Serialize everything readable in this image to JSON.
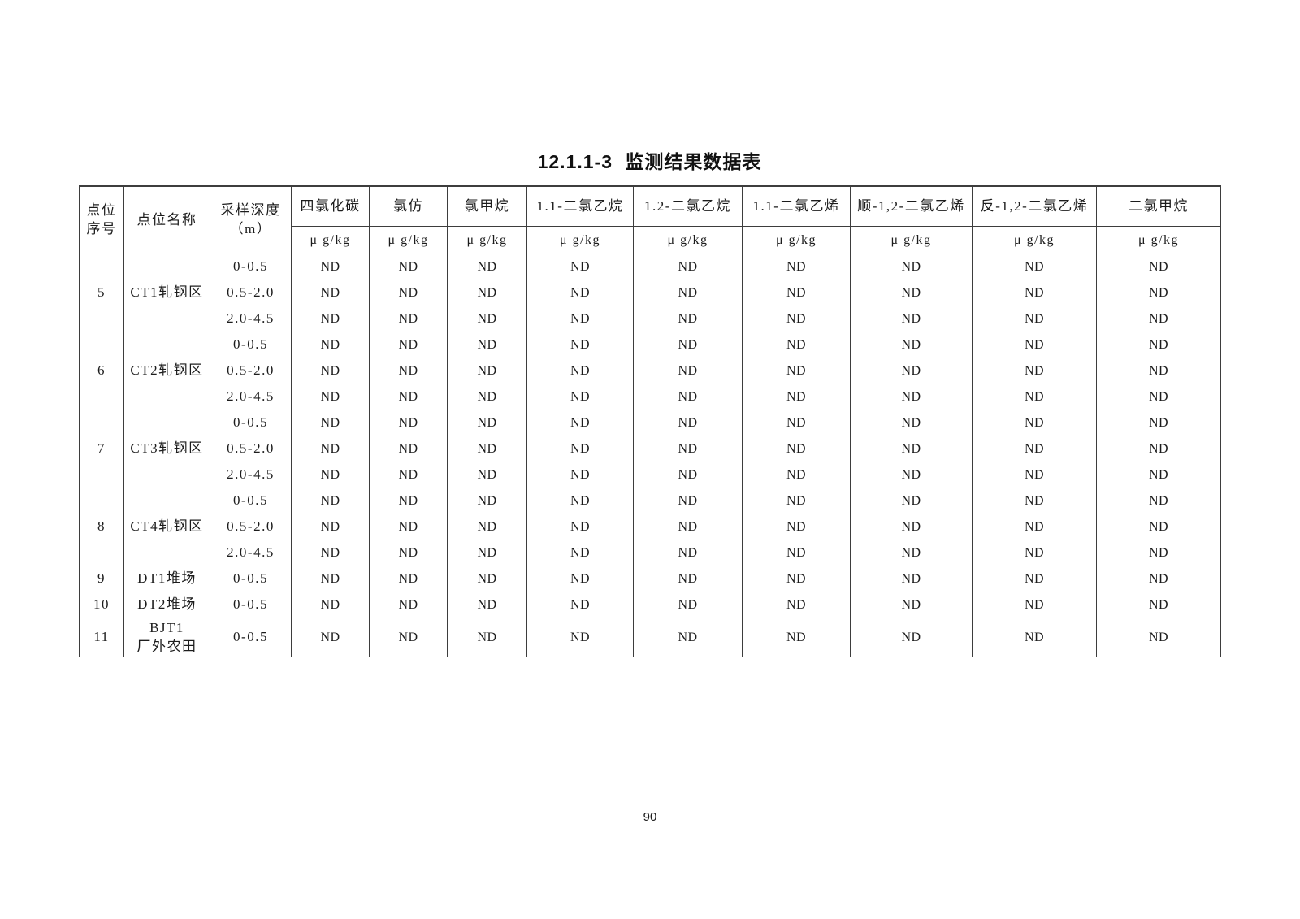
{
  "page": {
    "title": "12.1.1-3 监测结果数据表",
    "page_number": "90"
  },
  "table": {
    "fixed_headers": [
      {
        "label": "点位\n序号"
      },
      {
        "label": "点位名称"
      },
      {
        "label": "采样深度\n（m）"
      }
    ],
    "analyte_headers": [
      {
        "name": "四氯化碳",
        "unit": "μ g/kg"
      },
      {
        "name": "氯仿",
        "unit": "μ g/kg"
      },
      {
        "name": "氯甲烷",
        "unit": "μ g/kg"
      },
      {
        "name": "1.1-二氯乙烷",
        "unit": "μ g/kg"
      },
      {
        "name": "1.2-二氯乙烷",
        "unit": "μ g/kg"
      },
      {
        "name": "1.1-二氯乙烯",
        "unit": "μ g/kg"
      },
      {
        "name": "顺-1,2-二氯乙烯",
        "unit": "μ g/kg"
      },
      {
        "name": "反-1,2-二氯乙烯",
        "unit": "μ g/kg"
      },
      {
        "name": "二氯甲烷",
        "unit": "μ g/kg"
      }
    ],
    "groups": [
      {
        "no": "5",
        "name": "CT1轧钢区",
        "samples": [
          {
            "depth": "0-0.5",
            "values": [
              "ND",
              "ND",
              "ND",
              "ND",
              "ND",
              "ND",
              "ND",
              "ND",
              "ND"
            ]
          },
          {
            "depth": "0.5-2.0",
            "values": [
              "ND",
              "ND",
              "ND",
              "ND",
              "ND",
              "ND",
              "ND",
              "ND",
              "ND"
            ]
          },
          {
            "depth": "2.0-4.5",
            "values": [
              "ND",
              "ND",
              "ND",
              "ND",
              "ND",
              "ND",
              "ND",
              "ND",
              "ND"
            ]
          }
        ]
      },
      {
        "no": "6",
        "name": "CT2轧钢区",
        "samples": [
          {
            "depth": "0-0.5",
            "values": [
              "ND",
              "ND",
              "ND",
              "ND",
              "ND",
              "ND",
              "ND",
              "ND",
              "ND"
            ]
          },
          {
            "depth": "0.5-2.0",
            "values": [
              "ND",
              "ND",
              "ND",
              "ND",
              "ND",
              "ND",
              "ND",
              "ND",
              "ND"
            ]
          },
          {
            "depth": "2.0-4.5",
            "values": [
              "ND",
              "ND",
              "ND",
              "ND",
              "ND",
              "ND",
              "ND",
              "ND",
              "ND"
            ]
          }
        ]
      },
      {
        "no": "7",
        "name": "CT3轧钢区",
        "samples": [
          {
            "depth": "0-0.5",
            "values": [
              "ND",
              "ND",
              "ND",
              "ND",
              "ND",
              "ND",
              "ND",
              "ND",
              "ND"
            ]
          },
          {
            "depth": "0.5-2.0",
            "values": [
              "ND",
              "ND",
              "ND",
              "ND",
              "ND",
              "ND",
              "ND",
              "ND",
              "ND"
            ]
          },
          {
            "depth": "2.0-4.5",
            "values": [
              "ND",
              "ND",
              "ND",
              "ND",
              "ND",
              "ND",
              "ND",
              "ND",
              "ND"
            ]
          }
        ]
      },
      {
        "no": "8",
        "name": "CT4轧钢区",
        "samples": [
          {
            "depth": "0-0.5",
            "values": [
              "ND",
              "ND",
              "ND",
              "ND",
              "ND",
              "ND",
              "ND",
              "ND",
              "ND"
            ]
          },
          {
            "depth": "0.5-2.0",
            "values": [
              "ND",
              "ND",
              "ND",
              "ND",
              "ND",
              "ND",
              "ND",
              "ND",
              "ND"
            ]
          },
          {
            "depth": "2.0-4.5",
            "values": [
              "ND",
              "ND",
              "ND",
              "ND",
              "ND",
              "ND",
              "ND",
              "ND",
              "ND"
            ]
          }
        ]
      },
      {
        "no": "9",
        "name": "DT1堆场",
        "samples": [
          {
            "depth": "0-0.5",
            "values": [
              "ND",
              "ND",
              "ND",
              "ND",
              "ND",
              "ND",
              "ND",
              "ND",
              "ND"
            ]
          }
        ]
      },
      {
        "no": "10",
        "name": "DT2堆场",
        "samples": [
          {
            "depth": "0-0.5",
            "values": [
              "ND",
              "ND",
              "ND",
              "ND",
              "ND",
              "ND",
              "ND",
              "ND",
              "ND"
            ]
          }
        ]
      },
      {
        "no": "11",
        "name": "BJT1\n厂外农田",
        "samples": [
          {
            "depth": "0-0.5",
            "values": [
              "ND",
              "ND",
              "ND",
              "ND",
              "ND",
              "ND",
              "ND",
              "ND",
              "ND"
            ]
          }
        ]
      }
    ]
  }
}
